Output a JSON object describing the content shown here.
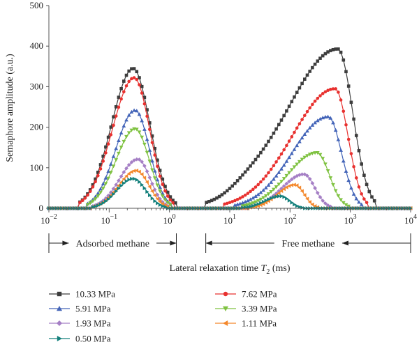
{
  "chart_data": {
    "type": "line",
    "xlabel_prefix": "Lateral relaxation time ",
    "xlabel_var": "T",
    "xlabel_sub": "2",
    "xlabel_suffix": " (ms)",
    "ylabel": "Semaphore amplitude (a.u.)",
    "x_scale": "log",
    "xlim": [
      0.01,
      10000
    ],
    "ylim": [
      0,
      500
    ],
    "x_ticks": [
      {
        "value": 0.01,
        "base": "10",
        "exp": "−2"
      },
      {
        "value": 0.1,
        "base": "10",
        "exp": "−1"
      },
      {
        "value": 1,
        "base": "10",
        "exp": "0"
      },
      {
        "value": 10,
        "base": "10",
        "exp": "1"
      },
      {
        "value": 100,
        "base": "10",
        "exp": "2"
      },
      {
        "value": 1000,
        "base": "10",
        "exp": "3"
      },
      {
        "value": 10000,
        "base": "10",
        "exp": "4"
      }
    ],
    "y_ticks": [
      "0",
      "100",
      "200",
      "300",
      "400",
      "500"
    ],
    "grid": false,
    "legend_position": "bottom",
    "annotations": [
      {
        "text": "Adsorbed methane",
        "x_from": 0.01,
        "x_to": 1.3
      },
      {
        "text": "Free methane",
        "x_from": 4,
        "x_to": 10000
      }
    ],
    "series": [
      {
        "name": "10.33 MPa",
        "color": "#3d3d3d",
        "marker": "square",
        "peaks": [
          {
            "x": 0.25,
            "y": 345,
            "xmin": 0.03,
            "xmax": 1.3
          },
          {
            "x": 620,
            "y": 393,
            "xmin": 4,
            "xmax": 2700
          },
          {
            "x": 20,
            "y": 15,
            "xmin": 4,
            "xmax": 200
          }
        ]
      },
      {
        "name": "7.62 MPa",
        "color": "#e8312f",
        "marker": "circle",
        "peaks": [
          {
            "x": 0.26,
            "y": 322,
            "xmin": 0.03,
            "xmax": 1.2
          },
          {
            "x": 560,
            "y": 295,
            "xmin": 8,
            "xmax": 2000
          }
        ]
      },
      {
        "name": "5.91 MPa",
        "color": "#4364b8",
        "marker": "triangle-up",
        "peaks": [
          {
            "x": 0.27,
            "y": 242,
            "xmin": 0.04,
            "xmax": 1.1
          },
          {
            "x": 430,
            "y": 226,
            "xmin": 12,
            "xmax": 1600
          }
        ]
      },
      {
        "name": "3.39 MPa",
        "color": "#7fc241",
        "marker": "triangle-down",
        "peaks": [
          {
            "x": 0.27,
            "y": 196,
            "xmin": 0.04,
            "xmax": 1.1
          },
          {
            "x": 280,
            "y": 137,
            "xmin": 15,
            "xmax": 950
          }
        ]
      },
      {
        "name": "1.93 MPa",
        "color": "#a57fc5",
        "marker": "diamond",
        "peaks": [
          {
            "x": 0.3,
            "y": 121,
            "xmin": 0.05,
            "xmax": 1.0
          },
          {
            "x": 170,
            "y": 84,
            "xmin": 20,
            "xmax": 500
          }
        ]
      },
      {
        "name": "1.11 MPa",
        "color": "#f4882c",
        "marker": "triangle-left",
        "peaks": [
          {
            "x": 0.28,
            "y": 93,
            "xmin": 0.05,
            "xmax": 1.0
          },
          {
            "x": 120,
            "y": 58,
            "xmin": 22,
            "xmax": 300
          }
        ]
      },
      {
        "name": "0.50 MPa",
        "color": "#14807c",
        "marker": "triangle-right",
        "peaks": [
          {
            "x": 0.25,
            "y": 73,
            "xmin": 0.05,
            "xmax": 0.9
          },
          {
            "x": 70,
            "y": 30,
            "xmin": 15,
            "xmax": 170
          }
        ]
      }
    ]
  }
}
